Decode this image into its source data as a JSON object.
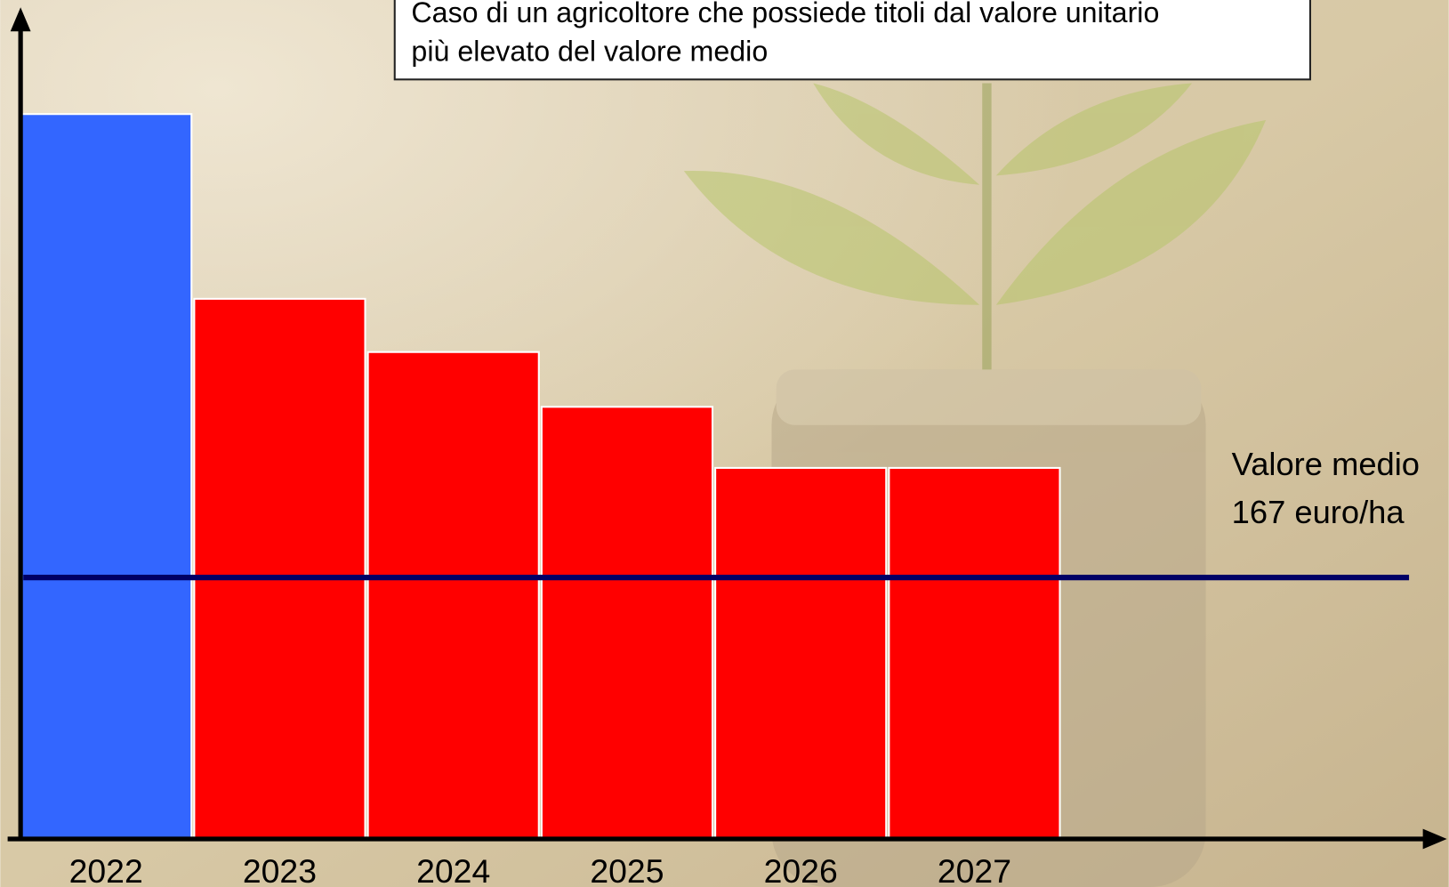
{
  "chart_data": {
    "type": "bar",
    "title": [
      "Caso di un agricoltore che possiede titoli dal valore unitario",
      "più elevato del valore medio"
    ],
    "categories": [
      "2022",
      "2023",
      "2024",
      "2025",
      "2026",
      "2027"
    ],
    "values": [
      463,
      345,
      311,
      276,
      237,
      237
    ],
    "colors": [
      "#3366ff",
      "#ff0000",
      "#ff0000",
      "#ff0000",
      "#ff0000",
      "#ff0000"
    ],
    "ylim": [
      0,
      527
    ],
    "reference_line": {
      "value": 167,
      "label": [
        "Valore medio",
        "167 euro/ha"
      ],
      "color": "#000066"
    }
  }
}
